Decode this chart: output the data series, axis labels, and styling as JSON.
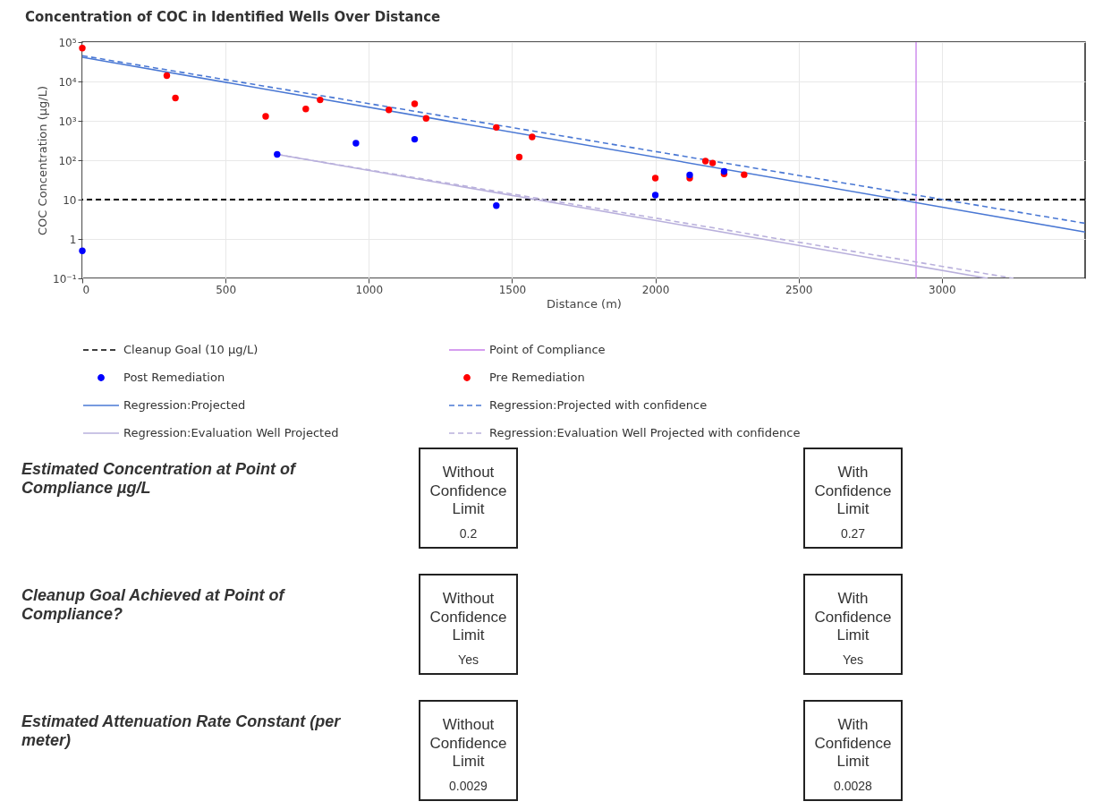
{
  "chart_data": [
    {
      "type": "scatter",
      "title": "Concentration of COC in Identified Wells Over Distance",
      "xlabel": "Distance (m)",
      "ylabel": "COC Concentration (µg/L)",
      "log": "y",
      "grid": true,
      "legend": "bottom",
      "xlim": [
        0,
        3500
      ],
      "xticks": [
        0,
        500,
        1000,
        1500,
        2000,
        2500,
        3000
      ],
      "ylim": [
        0.1,
        100000
      ],
      "yticks": [
        {
          "value": 0.1,
          "label": "10⁻¹"
        },
        1,
        10,
        {
          "value": 100,
          "label": "10²"
        },
        {
          "value": 1000,
          "label": "10³"
        },
        {
          "value": 10000,
          "label": "10⁴"
        },
        {
          "value": 100000,
          "label": "10⁵"
        }
      ],
      "ref_lines": [
        {
          "axis": "y",
          "value": 10,
          "label": "Cleanup Goal (10 µg/L)",
          "color": "#000000",
          "line_style": "dashed"
        },
        {
          "axis": "x",
          "value": 2910,
          "label": "Point of Compliance",
          "color": "#c77dea",
          "line_style": "solid"
        }
      ],
      "series": [
        {
          "name": "Post Remediation",
          "type": "scatter",
          "color": "#0000ff",
          "x": [
            0,
            680,
            955,
            1160,
            1445,
            2000,
            2120,
            2240
          ],
          "values": [
            0.5,
            140,
            270,
            340,
            7,
            13,
            42,
            52
          ]
        },
        {
          "name": "Pre Remediation",
          "type": "scatter",
          "color": "#ff0000",
          "x": [
            0,
            295,
            325,
            640,
            780,
            830,
            1070,
            1160,
            1200,
            1445,
            1525,
            1570,
            2000,
            2120,
            2175,
            2200,
            2240,
            2310
          ],
          "values": [
            70000,
            14000,
            3800,
            1300,
            2000,
            3400,
            1900,
            2700,
            1150,
            680,
            120,
            390,
            35,
            35,
            95,
            85,
            45,
            43
          ]
        },
        {
          "name": "Regression:Projected",
          "type": "line",
          "color": "#4a78d4",
          "line_style": "solid",
          "x": [
            0,
            3500
          ],
          "values": [
            41000,
            1.5
          ]
        },
        {
          "name": "Regression:Projected with confidence",
          "type": "line",
          "color": "#4a78d4",
          "line_style": "dashed",
          "x": [
            0,
            3500
          ],
          "values": [
            45000,
            2.5
          ]
        },
        {
          "name": "Regression:Evaluation Well Projected",
          "type": "line",
          "color": "#b9b0dc",
          "line_style": "solid",
          "x": [
            680,
            3160
          ],
          "values": [
            140,
            0.1
          ]
        },
        {
          "name": "Regression:Evaluation Well Projected with confidence",
          "type": "line",
          "color": "#b9b0dc",
          "line_style": "dashed",
          "x": [
            680,
            3250
          ],
          "values": [
            140,
            0.1
          ]
        }
      ]
    },
    {
      "type": "other",
      "annotations": [
        "Estimated Concentration at Point of Compliance µg/L",
        "Without Confidence Limit",
        "0.2",
        "With Confidence Limit",
        "0.27",
        "Cleanup Goal Achieved at Point of Compliance?",
        "Without Confidence Limit",
        "Yes",
        "With Confidence Limit",
        "Yes",
        "Estimated Attenuation Rate Constant (per meter)",
        "Without Confidence Limit",
        "0.0029",
        "With Confidence Limit",
        "0.0028"
      ]
    }
  ]
}
